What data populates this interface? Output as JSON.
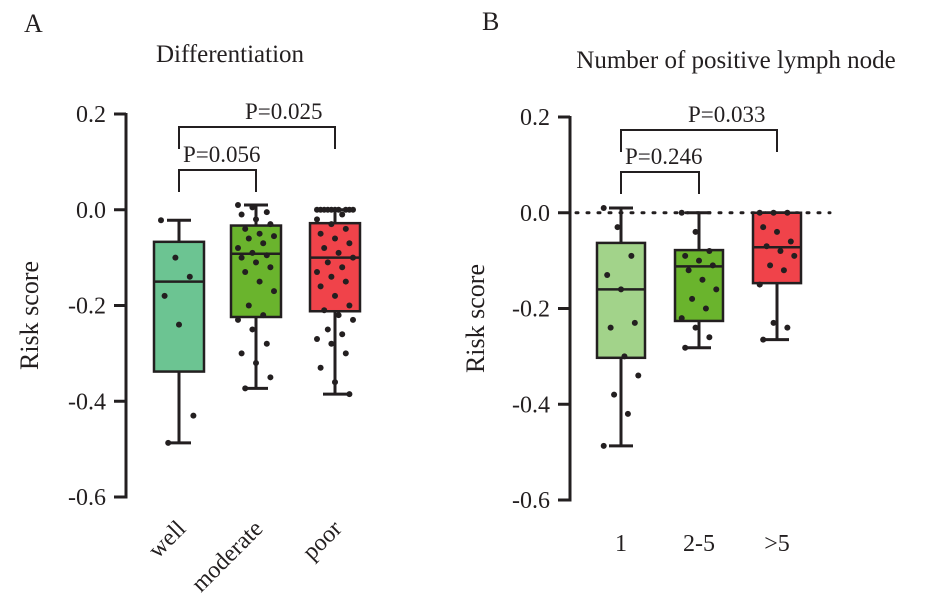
{
  "chart_data": [
    {
      "panel": "A",
      "type": "box",
      "title": "Differentiation",
      "ylabel": "Risk score",
      "ylim": [
        -0.6,
        0.2
      ],
      "yticks": [
        "0.2",
        "0.0",
        "-0.2",
        "-0.4",
        "-0.6"
      ],
      "categories": [
        "well",
        "moderate",
        "poor"
      ],
      "colors": [
        "#6cc492",
        "#6ab42d",
        "#f0434a"
      ],
      "boxes": [
        {
          "min": -0.487,
          "q1": -0.338,
          "median": -0.15,
          "q3": -0.067,
          "max": -0.022,
          "points": [
            -0.022,
            -0.1,
            -0.14,
            -0.18,
            -0.24,
            -0.43,
            -0.487
          ]
        },
        {
          "min": -0.373,
          "q1": -0.224,
          "median": -0.092,
          "q3": -0.033,
          "max": 0.01,
          "points": [
            0.01,
            0.005,
            -0.005,
            -0.01,
            -0.02,
            -0.03,
            -0.04,
            -0.05,
            -0.055,
            -0.06,
            -0.07,
            -0.08,
            -0.09,
            -0.095,
            -0.1,
            -0.11,
            -0.12,
            -0.13,
            -0.15,
            -0.17,
            -0.2,
            -0.22,
            -0.23,
            -0.25,
            -0.28,
            -0.3,
            -0.32,
            -0.35,
            -0.373
          ]
        },
        {
          "min": -0.385,
          "q1": -0.212,
          "median": -0.1,
          "q3": -0.028,
          "max": 0.0,
          "points": [
            0.0,
            0.0,
            0.0,
            0.0,
            0.0,
            0.0,
            0.0,
            0.0,
            0.0,
            0.0,
            -0.01,
            -0.02,
            -0.03,
            -0.04,
            -0.05,
            -0.06,
            -0.07,
            -0.08,
            -0.09,
            -0.1,
            -0.11,
            -0.12,
            -0.13,
            -0.14,
            -0.15,
            -0.16,
            -0.18,
            -0.2,
            -0.21,
            -0.22,
            -0.23,
            -0.25,
            -0.26,
            -0.27,
            -0.28,
            -0.3,
            -0.33,
            -0.36,
            -0.385
          ]
        }
      ],
      "comparisons": [
        {
          "from": 0,
          "to": 1,
          "label": "P=0.056"
        },
        {
          "from": 0,
          "to": 2,
          "label": "P=0.025"
        }
      ]
    },
    {
      "panel": "B",
      "type": "box",
      "title": "Number of positive lymph node",
      "ylabel": "Risk score",
      "ylim": [
        -0.6,
        0.2
      ],
      "yticks": [
        "0.2",
        "0.0",
        "-0.2",
        "-0.4",
        "-0.6"
      ],
      "categories": [
        "1",
        "2-5",
        ">5"
      ],
      "colors": [
        "#a2d38a",
        "#6ab42d",
        "#f0434a"
      ],
      "reference_line": 0.0,
      "boxes": [
        {
          "min": -0.487,
          "q1": -0.303,
          "median": -0.16,
          "q3": -0.063,
          "max": 0.01,
          "points": [
            0.01,
            -0.03,
            -0.09,
            -0.13,
            -0.16,
            -0.23,
            -0.24,
            -0.3,
            -0.34,
            -0.38,
            -0.42,
            -0.487
          ]
        },
        {
          "min": -0.282,
          "q1": -0.226,
          "median": -0.112,
          "q3": -0.078,
          "max": 0.0,
          "points": [
            0.0,
            -0.04,
            -0.08,
            -0.09,
            -0.1,
            -0.11,
            -0.12,
            -0.14,
            -0.16,
            -0.18,
            -0.2,
            -0.22,
            -0.24,
            -0.26,
            -0.282
          ]
        },
        {
          "min": -0.265,
          "q1": -0.147,
          "median": -0.072,
          "q3": 0.0,
          "max": 0.0,
          "points": [
            0.0,
            0.0,
            0.0,
            -0.03,
            -0.04,
            -0.06,
            -0.07,
            -0.08,
            -0.09,
            -0.11,
            -0.12,
            -0.15,
            -0.23,
            -0.24,
            -0.265
          ]
        }
      ],
      "comparisons": [
        {
          "from": 0,
          "to": 1,
          "label": "P=0.246"
        },
        {
          "from": 0,
          "to": 2,
          "label": "P=0.033"
        }
      ]
    }
  ]
}
